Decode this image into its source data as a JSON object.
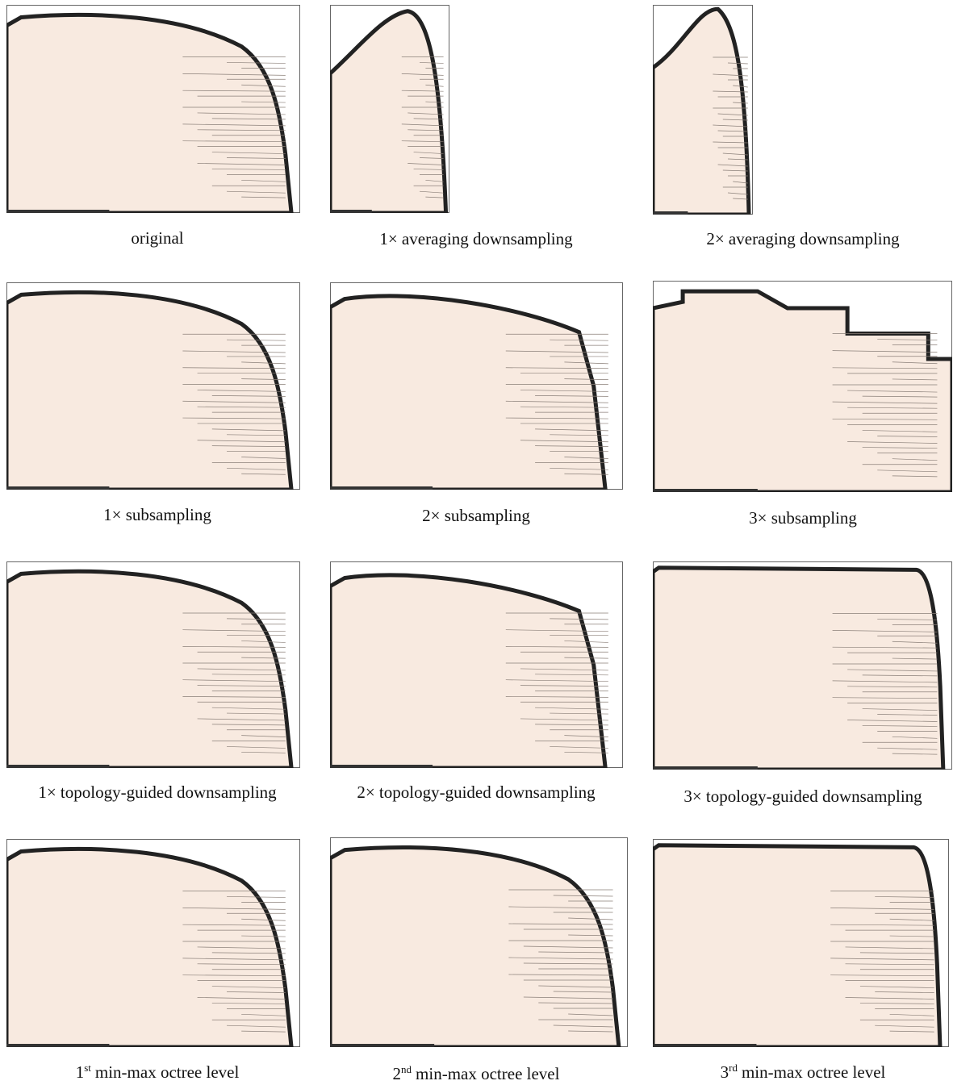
{
  "figure": {
    "panels": [
      {
        "caption": "original"
      },
      {
        "caption": "1× averaging downsampling"
      },
      {
        "caption": "2× averaging downsampling"
      },
      {
        "caption": "1× subsampling"
      },
      {
        "caption": "2× subsampling"
      },
      {
        "caption": "3× subsampling"
      },
      {
        "caption": "1× topology-guided downsampling"
      },
      {
        "caption": "2× topology-guided downsampling"
      },
      {
        "caption": "3× topology-guided downsampling"
      },
      {
        "ordinal": "1",
        "suffix": "st",
        "caption": "min-max octree level"
      },
      {
        "ordinal": "2",
        "suffix": "nd",
        "caption": "min-max octree level"
      },
      {
        "ordinal": "3",
        "suffix": "rd",
        "caption": "min-max octree level"
      }
    ]
  }
}
